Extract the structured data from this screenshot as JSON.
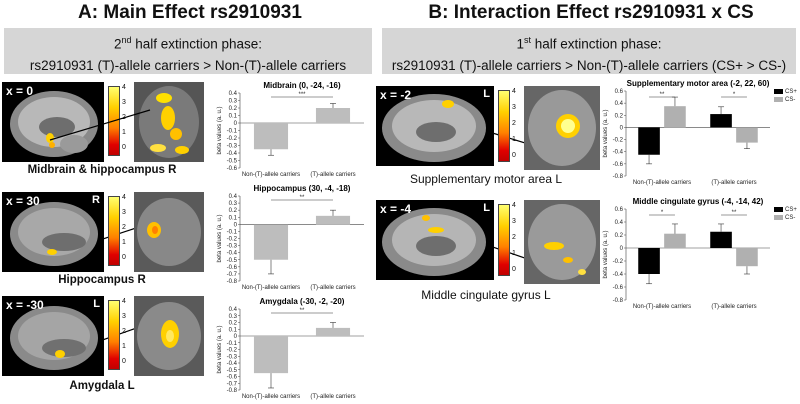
{
  "panel_a": {
    "title": "A: Main Effect rs2910931",
    "phase_line1_sup": "nd",
    "phase_line1_num": "2",
    "phase_line1_rest": " half extinction phase:",
    "phase_line2": "rs2910931 (T)-allele carriers > Non-(T)-allele  carriers"
  },
  "panel_b": {
    "title": "B: Interaction Effect rs2910931 x CS",
    "phase_line1_num": "1",
    "phase_line1_sup": "st",
    "phase_line1_rest": " half extinction phase:",
    "phase_line2": "rs2910931 (T)-allele carriers > Non-(T)-allele  carriers (CS+ > CS-)"
  },
  "brains": [
    {
      "coord": "x = 0",
      "hemi": "",
      "label": "Midbrain & hippocampus R",
      "cbar_ticks": [
        "4",
        "3",
        "2",
        "1",
        "0"
      ]
    },
    {
      "coord": "x = 30",
      "hemi": "R",
      "label": "Hippocampus R",
      "cbar_ticks": [
        "4",
        "3",
        "2",
        "1",
        "0"
      ]
    },
    {
      "coord": "x = -30",
      "hemi": "L",
      "label": "Amygdala L",
      "cbar_ticks": [
        "4",
        "3",
        "2",
        "1",
        "0"
      ]
    },
    {
      "coord": "x = -2",
      "hemi": "L",
      "label": "Supplementary motor area L",
      "cbar_ticks": [
        "4",
        "3",
        "2",
        "1",
        "0"
      ]
    },
    {
      "coord": "x = -4",
      "hemi": "L",
      "label": "Middle cingulate gyrus L",
      "cbar_ticks": [
        "4",
        "3",
        "2",
        "1",
        "0"
      ]
    }
  ],
  "chart_data": [
    {
      "type": "bar",
      "title": "Midbrain (0, -24, -16)",
      "categories": [
        "Non-(T)-allele carriers",
        "(T)-allele carriers"
      ],
      "values": [
        -0.35,
        0.2
      ],
      "errors": [
        0.08,
        0.06
      ],
      "significance": "***",
      "ylabel": "beta values (a. u.)",
      "ylim": [
        -0.6,
        0.4
      ],
      "yticks": [
        "0.4",
        "0.3",
        "0.2",
        "0.1",
        "0",
        "-0.1",
        "-0.2",
        "-0.3",
        "-0.4",
        "-0.5",
        "-0.6"
      ]
    },
    {
      "type": "bar",
      "title": "Hippocampus (30, -4, -18)",
      "categories": [
        "Non-(T)-allele carriers",
        "(T)-allele carriers"
      ],
      "values": [
        -0.5,
        0.12
      ],
      "errors": [
        0.2,
        0.08
      ],
      "significance": "**",
      "ylabel": "beta values (a. u.)",
      "ylim": [
        -0.8,
        0.4
      ],
      "yticks": [
        "0.4",
        "0.3",
        "0.2",
        "0.1",
        "0",
        "-0.1",
        "-0.2",
        "-0.3",
        "-0.4",
        "-0.5",
        "-0.6",
        "-0.7",
        "-0.8"
      ]
    },
    {
      "type": "bar",
      "title": "Amygdala (-30, -2, -20)",
      "categories": [
        "Non-(T)-allele carriers",
        "(T)-allele carriers"
      ],
      "values": [
        -0.55,
        0.12
      ],
      "errors": [
        0.22,
        0.08
      ],
      "significance": "**",
      "ylabel": "beta values (a. u.)",
      "ylim": [
        -0.8,
        0.4
      ],
      "yticks": [
        "0.4",
        "0.3",
        "0.2",
        "0.1",
        "0",
        "-0.1",
        "-0.2",
        "-0.3",
        "-0.4",
        "-0.5",
        "-0.6",
        "-0.7",
        "-0.8"
      ]
    },
    {
      "type": "bar",
      "title": "Supplementary motor area (-2, 22, 60)",
      "categories": [
        "Non-(T)-allele carriers",
        "(T)-allele carriers"
      ],
      "series": [
        {
          "name": "CS+",
          "values": [
            -0.45,
            0.22
          ],
          "errors": [
            0.15,
            0.12
          ]
        },
        {
          "name": "CS-",
          "values": [
            0.35,
            -0.25
          ],
          "errors": [
            0.15,
            0.1
          ]
        }
      ],
      "significance": [
        "**",
        "*"
      ],
      "ylabel": "beta values (a. u.)",
      "ylim": [
        -0.8,
        0.6
      ],
      "yticks": [
        "0.6",
        "0.4",
        "0.2",
        "0",
        "-0.2",
        "-0.4",
        "-0.6",
        "-0.8"
      ]
    },
    {
      "type": "bar",
      "title": "Middle cingulate gyrus (-4, -14, 42)",
      "categories": [
        "Non-(T)-allele carriers",
        "(T)-allele carriers"
      ],
      "series": [
        {
          "name": "CS+",
          "values": [
            -0.4,
            0.25
          ],
          "errors": [
            0.15,
            0.12
          ]
        },
        {
          "name": "CS-",
          "values": [
            0.22,
            -0.28
          ],
          "errors": [
            0.15,
            0.12
          ]
        }
      ],
      "significance": [
        "*",
        "**"
      ],
      "ylabel": "beta values (a. u.)",
      "ylim": [
        -0.8,
        0.6
      ],
      "yticks": [
        "0.6",
        "0.4",
        "0.2",
        "0",
        "-0.2",
        "-0.4",
        "-0.6",
        "-0.8"
      ]
    }
  ],
  "colors": {
    "cs_plus": "#000000",
    "cs_minus": "#b0b0b0",
    "bar_single": "#bdbdbd",
    "phase_bg": "#d6d6d6"
  }
}
